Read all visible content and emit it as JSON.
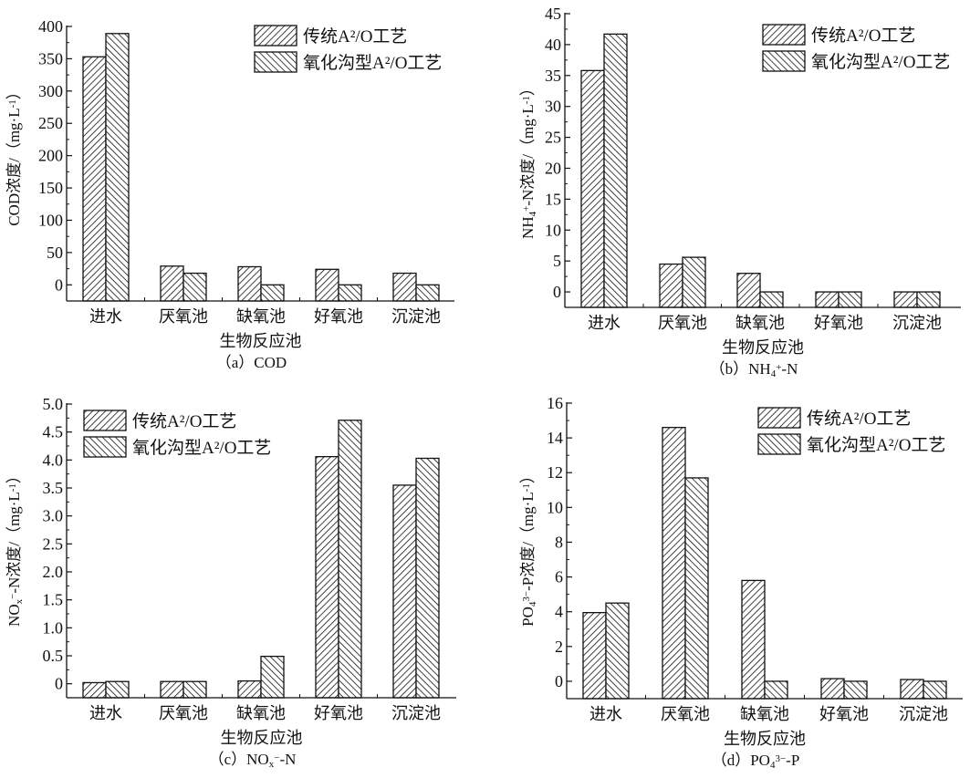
{
  "legend": [
    "传统A²/O工艺",
    "氧化沟型A²/O工艺"
  ],
  "chart_data": [
    {
      "type": "bar",
      "caption": [
        "（a）COD"
      ],
      "xlabel": "生物反应池",
      "ylabel": [
        "COD浓度/（mg·L",
        {
          "sup": "-1"
        },
        "）"
      ],
      "categories": [
        "进水",
        "厌氧池",
        "缺氧池",
        "好氧池",
        "沉淀池"
      ],
      "ylim": [
        -25,
        400
      ],
      "yticks": [
        0,
        50,
        100,
        150,
        200,
        250,
        300,
        350,
        400
      ],
      "ytick_labels": [
        "0",
        "50",
        "100",
        "150",
        "200",
        "250",
        "300",
        "350",
        "400"
      ],
      "series": [
        {
          "name": "传统A²/O工艺",
          "values": [
            353,
            29,
            28,
            24,
            18
          ]
        },
        {
          "name": "氧化沟型A²/O工艺",
          "values": [
            389,
            18,
            0,
            0,
            0
          ]
        }
      ],
      "legend_position": "top-right"
    },
    {
      "type": "bar",
      "caption": [
        "（b）NH",
        {
          "sub": "4"
        },
        {
          "sup": "+"
        },
        "-N"
      ],
      "xlabel": "生物反应池",
      "ylabel": [
        "NH",
        {
          "sub": "4"
        },
        {
          "sup": "+"
        },
        "-N浓度/（mg·L",
        {
          "sup": "-1"
        },
        "）"
      ],
      "categories": [
        "进水",
        "厌氧池",
        "缺氧池",
        "好氧池",
        "沉淀池"
      ],
      "ylim": [
        -2.5,
        45
      ],
      "yticks": [
        0,
        5,
        10,
        15,
        20,
        25,
        30,
        35,
        40,
        45
      ],
      "ytick_labels": [
        "0",
        "5",
        "10",
        "15",
        "20",
        "25",
        "30",
        "35",
        "40",
        "45"
      ],
      "series": [
        {
          "name": "传统A²/O工艺",
          "values": [
            35.8,
            4.5,
            3.0,
            0,
            0
          ]
        },
        {
          "name": "氧化沟型A²/O工艺",
          "values": [
            41.7,
            5.6,
            0,
            0,
            0
          ]
        }
      ],
      "legend_position": "top-right"
    },
    {
      "type": "bar",
      "caption": [
        "（c）NO",
        {
          "sub": "x"
        },
        {
          "sup": "−"
        },
        "-N"
      ],
      "xlabel": "生物反应池",
      "ylabel": [
        "NO",
        {
          "sub": "x"
        },
        {
          "sup": "−"
        },
        "-N浓度/（mg·L",
        {
          "sup": "-1"
        },
        "）"
      ],
      "categories": [
        "进水",
        "厌氧池",
        "缺氧池",
        "好氧池",
        "沉淀池"
      ],
      "ylim": [
        -0.25,
        5.0
      ],
      "yticks": [
        0,
        0.5,
        1.0,
        1.5,
        2.0,
        2.5,
        3.0,
        3.5,
        4.0,
        4.5,
        5.0
      ],
      "ytick_labels": [
        "0",
        "0.5",
        "1.0",
        "1.5",
        "2.0",
        "2.5",
        "3.0",
        "3.5",
        "4.0",
        "4.5",
        "5.0"
      ],
      "series": [
        {
          "name": "传统A²/O工艺",
          "values": [
            0.02,
            0.04,
            0.05,
            4.06,
            3.55
          ]
        },
        {
          "name": "氧化沟型A²/O工艺",
          "values": [
            0.04,
            0.04,
            0.49,
            4.71,
            4.03
          ]
        }
      ],
      "legend_position": "top-left"
    },
    {
      "type": "bar",
      "caption": [
        "（d）PO",
        {
          "sub": "4"
        },
        {
          "sup": "3−"
        },
        "-P"
      ],
      "xlabel": "生物反应池",
      "ylabel": [
        "PO",
        {
          "sub": "4"
        },
        {
          "sup": "3−"
        },
        "-P浓度/（mg·L",
        {
          "sup": "-1"
        },
        "）"
      ],
      "categories": [
        "进水",
        "厌氧池",
        "缺氧池",
        "好氧池",
        "沉淀池"
      ],
      "ylim": [
        -1,
        16
      ],
      "yticks": [
        0,
        2,
        4,
        6,
        8,
        10,
        12,
        14,
        16
      ],
      "ytick_labels": [
        "0",
        "2",
        "4",
        "6",
        "8",
        "10",
        "12",
        "14",
        "16"
      ],
      "series": [
        {
          "name": "传统A²/O工艺",
          "values": [
            3.95,
            14.6,
            5.8,
            0.15,
            0.1
          ]
        },
        {
          "name": "氧化沟型A²/O工艺",
          "values": [
            4.5,
            11.7,
            0,
            0,
            0
          ]
        }
      ],
      "legend_position": "top-right"
    }
  ]
}
